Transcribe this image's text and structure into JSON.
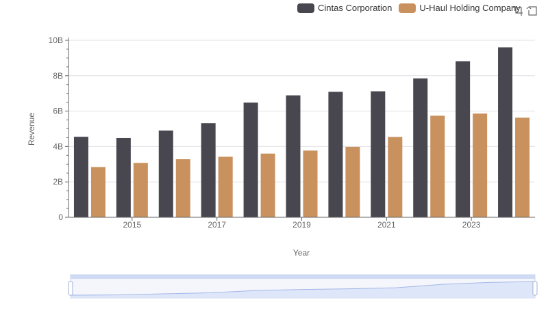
{
  "colors": {
    "cintas": "#484750",
    "uhaul": "#c8915d",
    "axis": "#666666",
    "grid": "#e0e0e6",
    "zoom_fill": "#dbe4f8",
    "zoom_border": "#c9d3ea",
    "zoom_line": "#a3b6e6"
  },
  "legend": {
    "items": [
      {
        "name": "Cintas Corporation",
        "color": "#484750"
      },
      {
        "name": "U-Haul Holding Company",
        "color": "#c8915d"
      }
    ]
  },
  "toolbox": {
    "icons": [
      "zoom-icon",
      "restore-icon"
    ]
  },
  "chart_data": {
    "type": "bar",
    "categories": [
      "2014",
      "2015",
      "2016",
      "2017",
      "2018",
      "2019",
      "2020",
      "2021",
      "2022",
      "2023",
      "2024"
    ],
    "series": [
      {
        "name": "Cintas Corporation",
        "values": [
          4.55,
          4.48,
          4.9,
          5.32,
          6.48,
          6.89,
          7.09,
          7.12,
          7.85,
          8.82,
          9.6
        ]
      },
      {
        "name": "U-Haul Holding Company",
        "values": [
          2.84,
          3.07,
          3.28,
          3.42,
          3.6,
          3.77,
          3.98,
          4.54,
          5.74,
          5.86,
          5.63
        ]
      }
    ],
    "xlabel": "Year",
    "ylabel": "Revenue",
    "ylim": [
      0,
      10
    ],
    "y_tick_labels": [
      "0",
      "2B",
      "4B",
      "6B",
      "8B",
      "10B"
    ],
    "x_tick_labels": [
      "2015",
      "2017",
      "2019",
      "2021",
      "2023"
    ],
    "grid": true,
    "legend_position": "top-right"
  }
}
